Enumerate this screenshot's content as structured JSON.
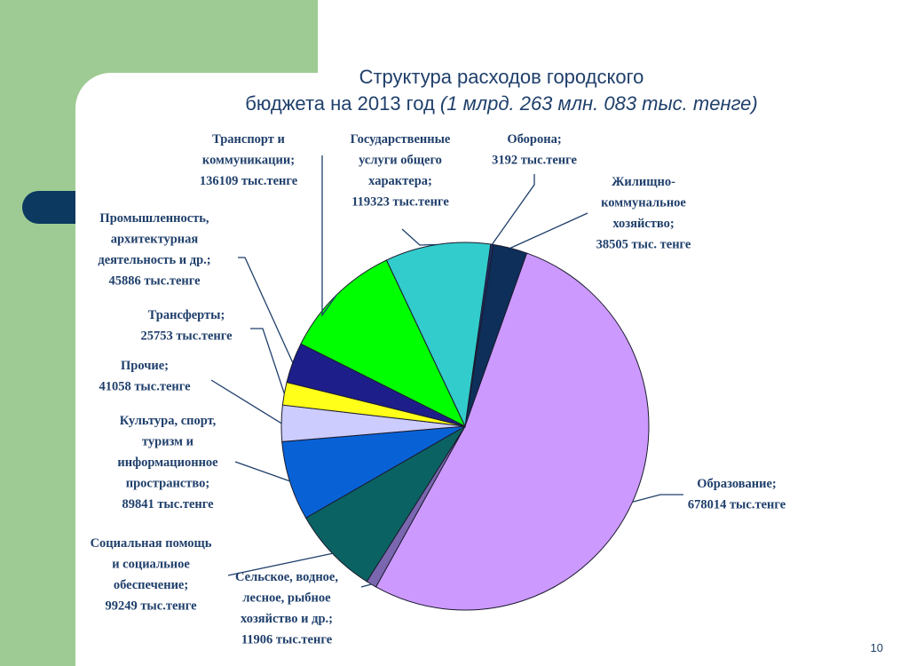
{
  "title": {
    "line1": "Структура расходов городского",
    "line2_main": "бюджета на 2013 год ",
    "line2_italic": "(1 млрд. 263 млн. 083 тыс. тенге)"
  },
  "page_number": "10",
  "chart_data": {
    "type": "pie",
    "title": "Структура расходов городского бюджета на 2013 год (1 млрд. 263 млн. 083 тыс. тенге)",
    "slices": [
      {
        "key": "oborona",
        "value": 3192,
        "color": "#1f2f6a",
        "label_lines": [
          "Оборона;",
          "3192 тыс.тенге"
        ]
      },
      {
        "key": "zhkh",
        "value": 38505,
        "color": "#0d2f5a",
        "label_lines": [
          "Жилищно-",
          "коммунальное",
          "хозяйство;",
          "38505 тыс. тенге"
        ]
      },
      {
        "key": "obrazovanie",
        "value": 678014,
        "color": "#cc99ff",
        "label_lines": [
          "Образование;",
          "678014 тыс.тенге"
        ]
      },
      {
        "key": "selskoe",
        "value": 11906,
        "color": "#7a67b0",
        "label_lines": [
          "Сельское, водное,",
          "лесное, рыбное",
          "хозяйство и др.;",
          "11906 тыс.тенге"
        ]
      },
      {
        "key": "socialnaya",
        "value": 99249,
        "color": "#0b6262",
        "label_lines": [
          "Социальная помощь",
          "и социальное",
          "обеспечение;",
          "99249 тыс.тенге"
        ]
      },
      {
        "key": "kultura",
        "value": 89841,
        "color": "#0862d6",
        "label_lines": [
          "Культура, спорт,",
          "туризм и",
          "информационное",
          "пространство;",
          "89841 тыс.тенге"
        ]
      },
      {
        "key": "prochie",
        "value": 41058,
        "color": "#ccccff",
        "label_lines": [
          "Прочие;",
          "41058 тыс.тенге"
        ]
      },
      {
        "key": "transferty",
        "value": 25753,
        "color": "#ffff19",
        "label_lines": [
          "Трансферты;",
          "25753 тыс.тенге"
        ]
      },
      {
        "key": "promyshlennost",
        "value": 45886,
        "color": "#1e1e8a",
        "label_lines": [
          "Промышленность,",
          "архитектурная",
          "деятельность и др.;",
          "45886 тыс.тенге"
        ]
      },
      {
        "key": "transport",
        "value": 136109,
        "color": "#00ff00",
        "label_lines": [
          "Транспорт и",
          "коммуникации;",
          "136109 тыс.тенге"
        ]
      },
      {
        "key": "gos_uslugi",
        "value": 119323,
        "color": "#33cccc",
        "label_lines": [
          "Государственные",
          "услуги общего",
          "характера;",
          "119323 тыс.тенге"
        ]
      }
    ]
  }
}
